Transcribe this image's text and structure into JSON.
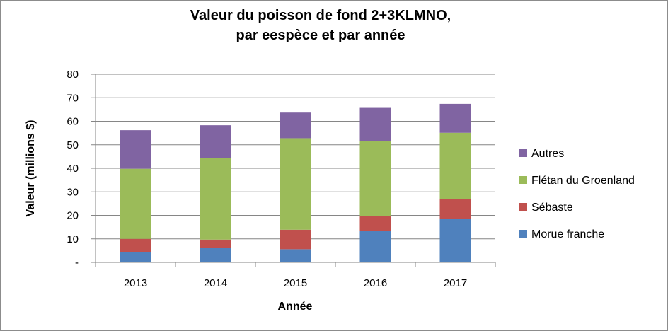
{
  "chart_data": {
    "type": "bar",
    "stacked": true,
    "title": [
      "Valeur du poisson de fond 2+3KLMNO,",
      "par eespèce et par année"
    ],
    "xlabel": "Année",
    "ylabel": "Valeur (millions $)",
    "categories": [
      "2013",
      "2014",
      "2015",
      "2016",
      "2017"
    ],
    "ylim": [
      0,
      80
    ],
    "yticks": [
      0,
      10,
      20,
      30,
      40,
      50,
      60,
      70,
      80
    ],
    "ytick_labels": [
      "-",
      "10",
      "20",
      "30",
      "40",
      "50",
      "60",
      "70",
      "80"
    ],
    "grid": true,
    "legend_position": "right",
    "series": [
      {
        "name": "Morue franche",
        "color": "#4F81BD",
        "values": [
          4.3,
          6.3,
          5.6,
          13.4,
          18.5
        ]
      },
      {
        "name": "Sébaste",
        "color": "#C0504D",
        "values": [
          5.7,
          3.4,
          8.3,
          6.4,
          8.4
        ]
      },
      {
        "name": "Flétan du Groenland",
        "color": "#9BBB59",
        "values": [
          29.8,
          34.6,
          38.9,
          31.7,
          28.2
        ]
      },
      {
        "name": "Autres",
        "color": "#8064A2",
        "values": [
          16.4,
          14.0,
          10.9,
          14.5,
          12.3
        ]
      }
    ]
  }
}
